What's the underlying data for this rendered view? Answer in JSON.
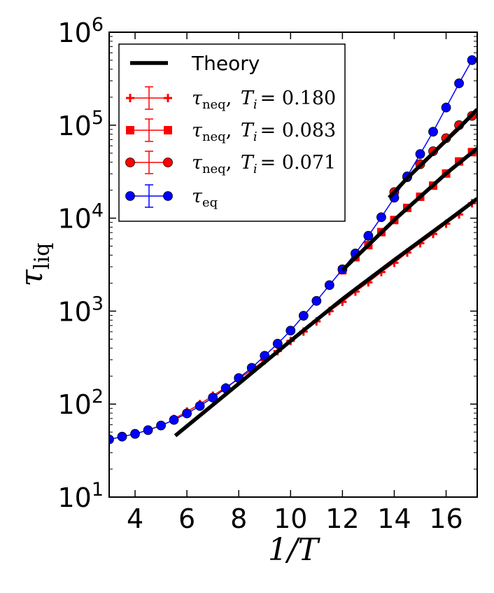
{
  "chart_data": {
    "type": "line",
    "xlabel": "1/T",
    "ylabel": "τ_liq",
    "xlim": [
      3,
      17.2
    ],
    "ylim": [
      1,
      6
    ],
    "yscale": "log10",
    "x_ticks": [
      4,
      6,
      8,
      10,
      12,
      14,
      16
    ],
    "y_ticks": [
      1,
      2,
      3,
      4,
      5,
      6
    ],
    "y_tick_labels": [
      "10^1",
      "10^2",
      "10^3",
      "10^4",
      "10^5",
      "10^6"
    ],
    "legend_position": "top-left",
    "series": [
      {
        "name": "Theory",
        "color": "#000000",
        "style": "thick-line",
        "segments": [
          {
            "x": [
              5.55,
              8.0,
              10.0,
              12.0,
              14.0,
              16.0,
              17.2
            ],
            "log10_y": [
              1.66,
              2.22,
              2.68,
              3.13,
              3.55,
              3.96,
              4.21
            ]
          },
          {
            "x": [
              12.0,
              13.0,
              14.0,
              15.0,
              16.0,
              17.2
            ],
            "log10_y": [
              3.44,
              3.71,
              3.98,
              4.23,
              4.48,
              4.75
            ]
          },
          {
            "x": [
              13.8,
              14.5,
              15.5,
              16.5,
              17.2
            ],
            "log10_y": [
              4.22,
              4.43,
              4.7,
              4.97,
              5.17
            ]
          }
        ]
      },
      {
        "name": "τ_neq, T_i = 0.180",
        "legend_main": "τ",
        "legend_sub": "neq",
        "legend_ti": "T",
        "legend_ti_sub": "i",
        "legend_value": "= 0.180",
        "color": "#ff0000",
        "marker": "plus",
        "x": [
          5.5,
          6.0,
          6.5,
          7.0,
          7.5,
          8.0,
          8.5,
          9.0,
          9.5,
          10.0,
          10.5,
          11.0,
          11.5,
          12.0,
          12.5,
          13.0,
          13.5,
          14.0,
          14.5,
          15.0,
          15.5,
          16.0,
          16.5,
          17.0
        ],
        "log10_y": [
          1.84,
          1.92,
          2.0,
          2.09,
          2.18,
          2.27,
          2.37,
          2.47,
          2.57,
          2.68,
          2.78,
          2.89,
          3.0,
          3.1,
          3.21,
          3.31,
          3.42,
          3.52,
          3.63,
          3.73,
          3.83,
          3.94,
          4.04,
          4.16
        ]
      },
      {
        "name": "τ_neq, T_i = 0.083",
        "legend_main": "τ",
        "legend_sub": "neq",
        "legend_ti": "T",
        "legend_ti_sub": "i",
        "legend_value": "= 0.083",
        "color": "#ff0000",
        "marker": "square",
        "x": [
          12.0,
          12.5,
          13.0,
          13.5,
          14.0,
          14.5,
          15.0,
          15.5,
          16.0,
          16.5,
          17.0
        ],
        "log10_y": [
          3.44,
          3.58,
          3.71,
          3.85,
          3.98,
          4.11,
          4.23,
          4.35,
          4.48,
          4.61,
          4.71
        ]
      },
      {
        "name": "τ_neq, T_i = 0.071",
        "legend_main": "τ",
        "legend_sub": "neq",
        "legend_ti": "T",
        "legend_ti_sub": "i",
        "legend_value": "= 0.071",
        "color": "#ff0000",
        "marker": "circle",
        "x": [
          14.0,
          14.5,
          15.0,
          15.5,
          16.0,
          16.5,
          17.0
        ],
        "log10_y": [
          4.28,
          4.44,
          4.58,
          4.72,
          4.86,
          5.0,
          5.1
        ]
      },
      {
        "name": "τ_eq",
        "legend_main": "τ",
        "legend_sub": "eq",
        "color": "#0000ff",
        "marker": "circle",
        "x": [
          3.0,
          3.5,
          4.0,
          4.5,
          5.0,
          5.5,
          6.0,
          6.5,
          7.0,
          7.5,
          8.0,
          8.5,
          9.0,
          9.5,
          10.0,
          10.5,
          11.0,
          11.5,
          12.0,
          12.5,
          13.0,
          13.5,
          14.0,
          14.5,
          15.0,
          15.5,
          16.0,
          16.5,
          17.0
        ],
        "log10_y": [
          1.62,
          1.65,
          1.68,
          1.72,
          1.77,
          1.83,
          1.9,
          1.98,
          2.07,
          2.17,
          2.28,
          2.39,
          2.52,
          2.65,
          2.79,
          2.95,
          3.11,
          3.28,
          3.45,
          3.62,
          3.81,
          4.01,
          4.22,
          4.45,
          4.69,
          4.93,
          5.19,
          5.45,
          5.7
        ]
      }
    ]
  }
}
